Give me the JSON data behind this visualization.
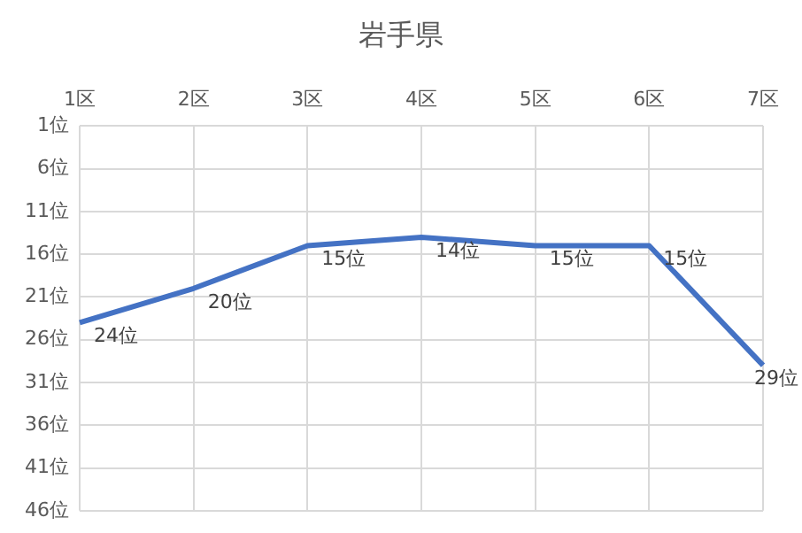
{
  "chart_data": {
    "type": "line",
    "title": "岩手県",
    "categories": [
      "1区",
      "2区",
      "3区",
      "4区",
      "5区",
      "6区",
      "7区"
    ],
    "series": [
      {
        "color": "#4472c4",
        "values": [
          24,
          20,
          15,
          14,
          15,
          15,
          29
        ]
      }
    ],
    "value_labels": [
      "24位",
      "20位",
      "15位",
      "14位",
      "15位",
      "15位",
      "29位"
    ],
    "ylim": [
      46,
      1
    ],
    "yticks": [
      {
        "value": 1,
        "label": "1位"
      },
      {
        "value": 6,
        "label": "6位"
      },
      {
        "value": 11,
        "label": "11位"
      },
      {
        "value": 16,
        "label": "16位"
      },
      {
        "value": 21,
        "label": "21位"
      },
      {
        "value": 26,
        "label": "26位"
      },
      {
        "value": 31,
        "label": "31位"
      },
      {
        "value": 36,
        "label": "36位"
      },
      {
        "value": 41,
        "label": "41位"
      },
      {
        "value": 46,
        "label": "46位"
      }
    ],
    "grid": true,
    "legend": false,
    "marker": "none",
    "line_style": "solid"
  }
}
